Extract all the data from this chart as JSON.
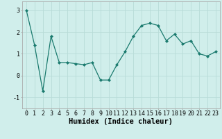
{
  "x": [
    0,
    1,
    2,
    3,
    4,
    5,
    6,
    7,
    8,
    9,
    10,
    11,
    12,
    13,
    14,
    15,
    16,
    17,
    18,
    19,
    20,
    21,
    22,
    23
  ],
  "y": [
    3.0,
    1.4,
    -0.7,
    1.8,
    0.6,
    0.6,
    0.55,
    0.5,
    0.6,
    -0.2,
    -0.2,
    0.5,
    1.1,
    1.8,
    2.3,
    2.4,
    2.3,
    1.6,
    1.9,
    1.45,
    1.6,
    1.0,
    0.9,
    1.1
  ],
  "line_color": "#1a7a6e",
  "marker": "D",
  "marker_size": 2,
  "bg_color": "#d0eeeb",
  "grid_color": "#b8dbd7",
  "xlabel": "Humidex (Indice chaleur)",
  "ylim": [
    -1.5,
    3.4
  ],
  "xlim": [
    -0.5,
    23.5
  ],
  "yticks": [
    -1,
    0,
    1,
    2,
    3
  ],
  "xticks": [
    0,
    1,
    2,
    3,
    4,
    5,
    6,
    7,
    8,
    9,
    10,
    11,
    12,
    13,
    14,
    15,
    16,
    17,
    18,
    19,
    20,
    21,
    22,
    23
  ],
  "tick_fontsize": 6,
  "xlabel_fontsize": 7.5
}
